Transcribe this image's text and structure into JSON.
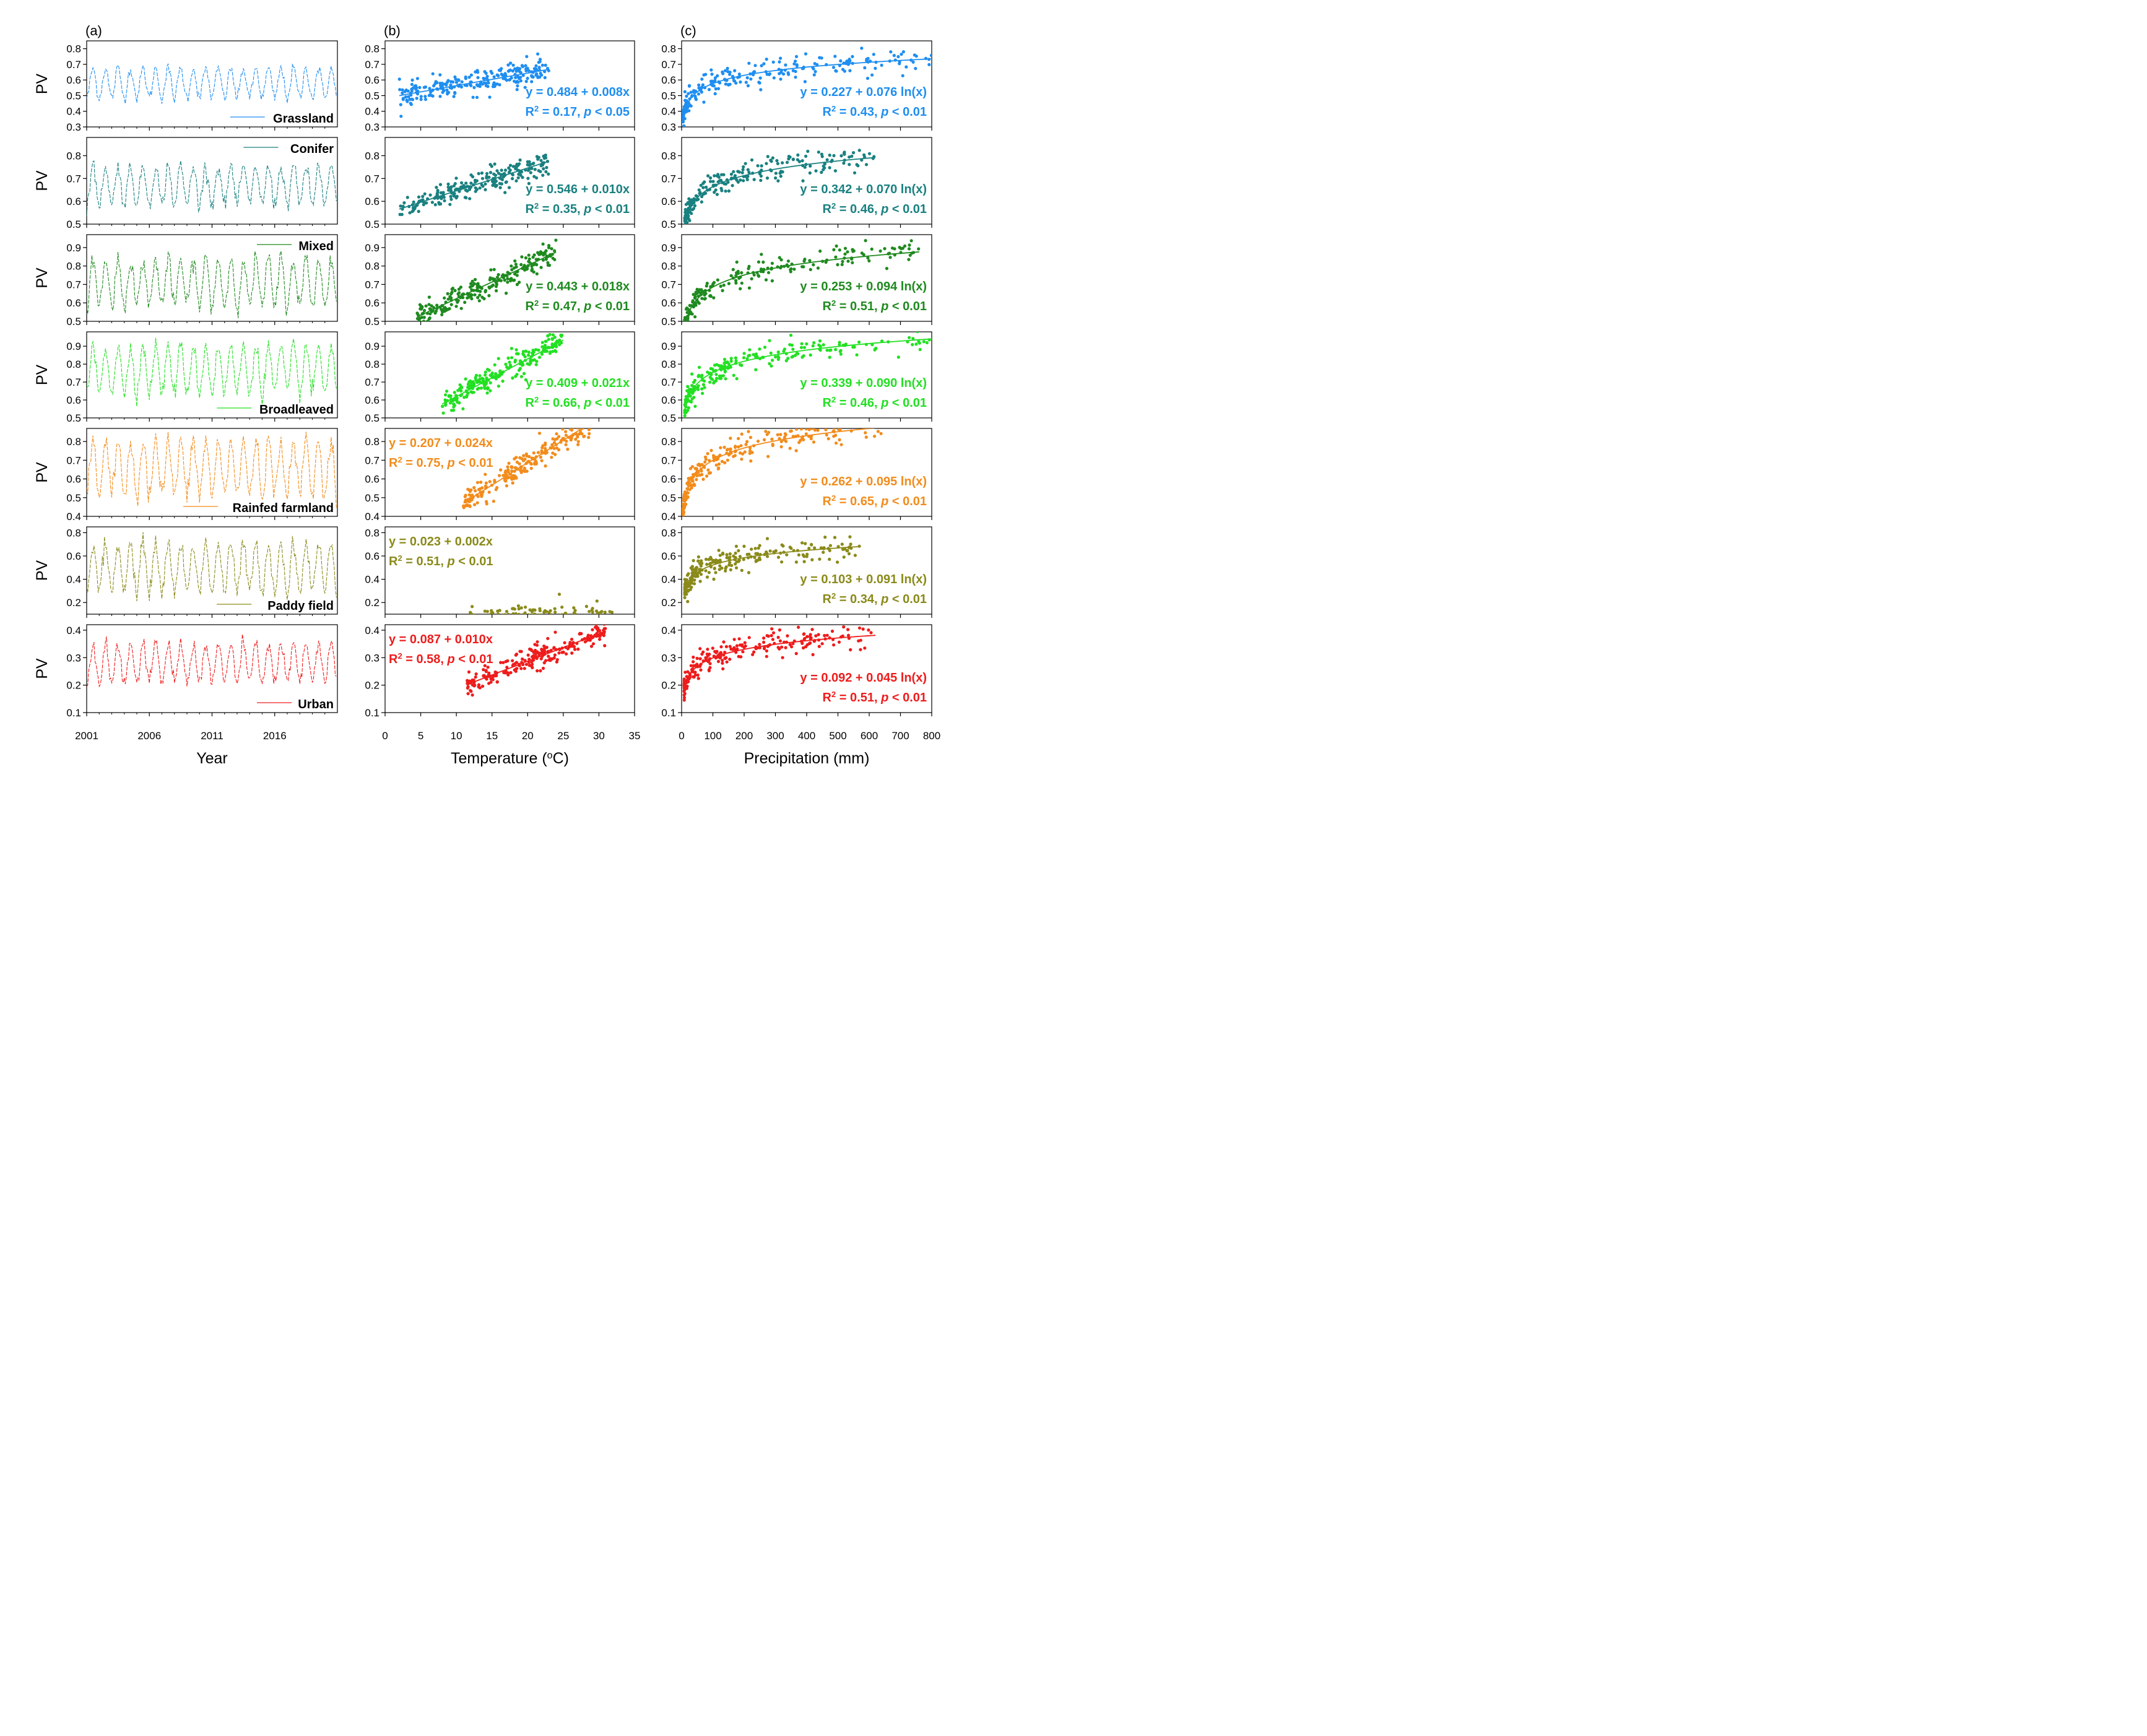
{
  "chart_data": {
    "type": "scatter",
    "description_title": "",
    "columns": [
      {
        "label": "(a)",
        "xlabel": "Year",
        "xlim": [
          2001,
          2021
        ],
        "ticks": [
          2001,
          2006,
          2011,
          2016
        ],
        "tick_labels": [
          "2001",
          "2006",
          "2011",
          "2016"
        ],
        "kind": "timeseries"
      },
      {
        "label": "(b)",
        "xlabel": "Temperature (°C)",
        "xlabel_main": "Temperature (",
        "xlabel_sup": "o",
        "xlabel_end": "C)",
        "xlim": [
          0,
          35
        ],
        "ticks": [
          0,
          5,
          10,
          15,
          20,
          25,
          30,
          35
        ],
        "tick_labels": [
          "0",
          "5",
          "10",
          "15",
          "20",
          "25",
          "30",
          "35"
        ],
        "kind": "linear"
      },
      {
        "label": "(c)",
        "xlabel": "Precipitation (mm)",
        "xlim": [
          0,
          800
        ],
        "ticks": [
          0,
          100,
          200,
          300,
          400,
          500,
          600,
          700,
          800
        ],
        "tick_labels": [
          "0",
          "100",
          "200",
          "300",
          "400",
          "500",
          "600",
          "700",
          "800"
        ],
        "kind": "log"
      }
    ],
    "ylabel": "PV",
    "rows": [
      {
        "name": "Grassland",
        "color": "#1f8ef0",
        "ylim": [
          0.3,
          0.85
        ],
        "yticks": [
          0.3,
          0.4,
          0.5,
          0.6,
          0.7,
          0.8
        ],
        "ytick_labels": [
          "0.3",
          "0.4",
          "0.5",
          "0.6",
          "0.7",
          "0.8"
        ],
        "ts_base": 0.58,
        "ts_amp": 0.11,
        "legend_pos": "bottom-right",
        "temp": {
          "a": 0.484,
          "b": 0.008,
          "xrange": [
            2,
            23
          ],
          "eq": "y = 0.484 + 0.008x",
          "r2": "0.17",
          "p": "0.05",
          "eq_pos": "bottom-right"
        },
        "precip": {
          "a": 0.227,
          "b": 0.076,
          "xrange": [
            5,
            800
          ],
          "eq": "y = 0.227 + 0.076 ln(x)",
          "r2": "0.43",
          "p": "0.01",
          "eq_pos": "bottom-right"
        }
      },
      {
        "name": "Conifer",
        "color": "#1a8080",
        "ylim": [
          0.5,
          0.88
        ],
        "yticks": [
          0.5,
          0.6,
          0.7,
          0.8
        ],
        "ytick_labels": [
          "0.5",
          "0.6",
          "0.7",
          "0.8"
        ],
        "ts_base": 0.67,
        "ts_amp": 0.1,
        "legend_pos": "top-right",
        "temp": {
          "a": 0.546,
          "b": 0.01,
          "xrange": [
            2,
            23
          ],
          "eq": "y = 0.546 + 0.010x",
          "r2": "0.35",
          "p": "0.01",
          "eq_pos": "bottom-right"
        },
        "precip": {
          "a": 0.342,
          "b": 0.07,
          "xrange": [
            10,
            620
          ],
          "eq": "y = 0.342 + 0.070 ln(x)",
          "r2": "0.46",
          "p": "0.01",
          "eq_pos": "bottom-right"
        }
      },
      {
        "name": "Mixed",
        "color": "#1f8a1f",
        "ylim": [
          0.5,
          0.97
        ],
        "yticks": [
          0.5,
          0.6,
          0.7,
          0.8,
          0.9
        ],
        "ytick_labels": [
          "0.5",
          "0.6",
          "0.7",
          "0.8",
          "0.9"
        ],
        "ts_base": 0.71,
        "ts_amp": 0.15,
        "legend_pos": "top-right",
        "temp": {
          "a": 0.443,
          "b": 0.018,
          "xrange": [
            4.5,
            24
          ],
          "eq": "y = 0.443 + 0.018x",
          "r2": "0.47",
          "p": "0.01",
          "eq_pos": "bottom-right"
        },
        "precip": {
          "a": 0.253,
          "b": 0.094,
          "xrange": [
            5,
            760
          ],
          "eq": "y = 0.253 + 0.094 ln(x)",
          "r2": "0.51",
          "p": "0.01",
          "eq_pos": "bottom-right"
        }
      },
      {
        "name": "Broadleaved",
        "color": "#22e022",
        "ylim": [
          0.5,
          0.98
        ],
        "yticks": [
          0.5,
          0.6,
          0.7,
          0.8,
          0.9
        ],
        "ytick_labels": [
          "0.5",
          "0.6",
          "0.7",
          "0.8",
          "0.9"
        ],
        "ts_base": 0.77,
        "ts_amp": 0.15,
        "legend_pos": "bottom-right",
        "temp": {
          "a": 0.409,
          "b": 0.021,
          "xrange": [
            8,
            25
          ],
          "eq": "y = 0.409 + 0.021x",
          "r2": "0.66",
          "p": "0.01",
          "eq_pos": "bottom-right"
        },
        "precip": {
          "a": 0.339,
          "b": 0.09,
          "xrange": [
            10,
            800
          ],
          "eq": "y = 0.339 + 0.090 ln(x)",
          "r2": "0.46",
          "p": "0.01",
          "eq_pos": "bottom-right"
        }
      },
      {
        "name": "Rainfed farmland",
        "color": "#f28c1c",
        "ylim": [
          0.4,
          0.87
        ],
        "yticks": [
          0.4,
          0.5,
          0.6,
          0.7,
          0.8
        ],
        "ytick_labels": [
          "0.4",
          "0.5",
          "0.6",
          "0.7",
          "0.8"
        ],
        "ts_base": 0.66,
        "ts_amp": 0.17,
        "legend_pos": "bottom-right",
        "temp": {
          "a": 0.207,
          "b": 0.024,
          "xrange": [
            11,
            29
          ],
          "eq": "y = 0.207 + 0.024x",
          "r2": "0.75",
          "p": "0.01",
          "eq_pos": "top-left"
        },
        "precip": {
          "a": 0.262,
          "b": 0.095,
          "xrange": [
            5,
            660
          ],
          "eq": "y = 0.262 + 0.095 ln(x)",
          "r2": "0.65",
          "p": "0.01",
          "eq_pos": "bottom-right"
        }
      },
      {
        "name": "Paddy field",
        "color": "#8a8a1a",
        "ylim": [
          0.1,
          0.85
        ],
        "yticks": [
          0.2,
          0.4,
          0.6,
          0.8
        ],
        "ytick_labels": [
          "0.2",
          "0.4",
          "0.6",
          "0.8"
        ],
        "ts_base": 0.5,
        "ts_amp": 0.24,
        "legend_pos": "bottom-right",
        "temp": {
          "a": 0.023,
          "b": 0.002,
          "xrange": [
            11,
            32
          ],
          "eq": "y = 0.023 + 0.002x",
          "r2": "0.51",
          "p": "0.01",
          "eq_pos": "top-left"
        },
        "precip": {
          "a": 0.103,
          "b": 0.091,
          "xrange": [
            10,
            570
          ],
          "eq": "y = 0.103 + 0.091 ln(x)",
          "r2": "0.34",
          "p": "0.01",
          "eq_pos": "bottom-right"
        }
      },
      {
        "name": "Urban",
        "color": "#ee1c1c",
        "ylim": [
          0.1,
          0.42
        ],
        "yticks": [
          0.1,
          0.2,
          0.3,
          0.4
        ],
        "ytick_labels": [
          "0.1",
          "0.2",
          "0.3",
          "0.4"
        ],
        "ts_base": 0.28,
        "ts_amp": 0.08,
        "legend_pos": "bottom-right",
        "temp": {
          "a": 0.087,
          "b": 0.01,
          "xrange": [
            11.5,
            31
          ],
          "eq": "y = 0.087 + 0.010x",
          "r2": "0.58",
          "p": "0.01",
          "eq_pos": "top-left"
        },
        "precip": {
          "a": 0.092,
          "b": 0.045,
          "xrange": [
            8,
            620
          ],
          "eq": "y = 0.092 + 0.045 ln(x)",
          "r2": "0.51",
          "p": "0.01",
          "eq_pos": "bottom-right"
        }
      }
    ]
  }
}
